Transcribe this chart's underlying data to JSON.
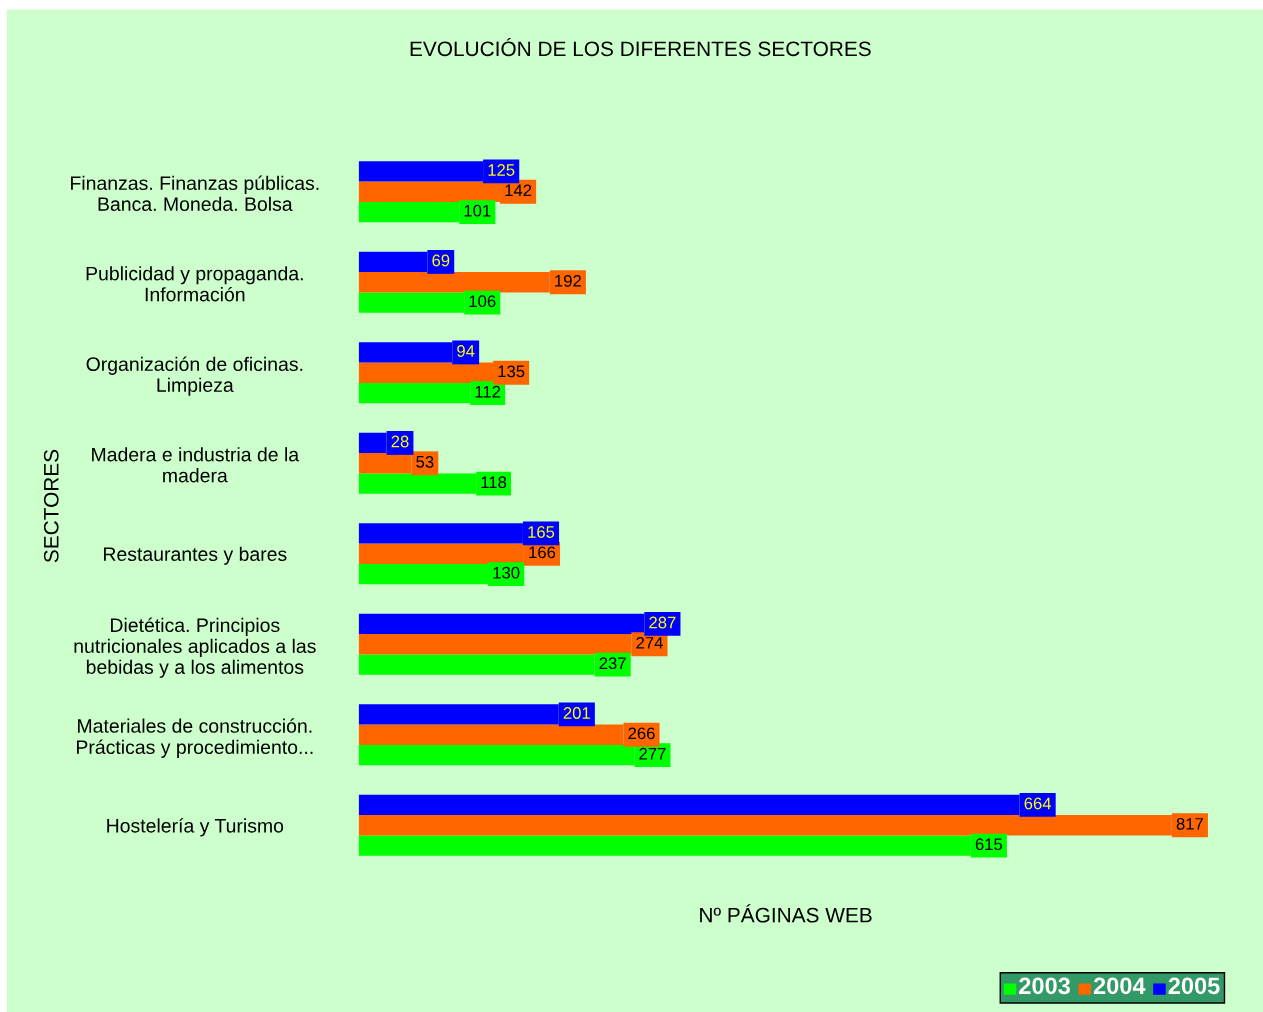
{
  "chart_data": {
    "type": "bar",
    "orientation": "horizontal",
    "title": "EVOLUCIÓN DE LOS DIFERENTES SECTORES",
    "xlabel": "Nº PÁGINAS WEB",
    "ylabel": "SECTORES",
    "categories": [
      "Finanzas. Finanzas públicas.\nBanca. Moneda. Bolsa",
      "Publicidad y propaganda.\nInformación",
      "Organización de oficinas.\nLimpieza",
      "Madera e industria de la\nmadera",
      "Restaurantes y bares",
      "Dietética. Principios\nnutricionales aplicados a las\nbebidas y a los alimentos",
      "Materiales de construcción.\nPrácticas y procedimiento...",
      "Hostelería y Turismo"
    ],
    "series": [
      {
        "name": "2003",
        "color": "#00ff00",
        "values": [
          101,
          106,
          112,
          118,
          130,
          237,
          277,
          615
        ]
      },
      {
        "name": "2004",
        "color": "#ff6600",
        "values": [
          142,
          192,
          135,
          53,
          166,
          274,
          266,
          817
        ]
      },
      {
        "name": "2005",
        "color": "#0000ff",
        "values": [
          125,
          69,
          94,
          28,
          165,
          287,
          201,
          664
        ]
      }
    ],
    "data_labels": true,
    "legend": "bottom right",
    "grid": false,
    "tick_labels": "y"
  }
}
